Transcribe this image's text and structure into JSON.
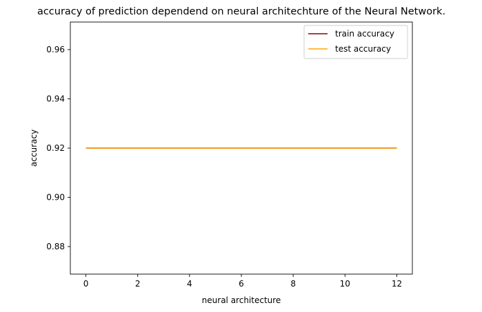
{
  "chart_data": {
    "type": "line",
    "title": "accuracy of prediction dependend on neural architechture of the Neural Network.",
    "xlabel": "neural architecture",
    "ylabel": "accuracy",
    "xlim": [
      -0.6,
      12.6
    ],
    "ylim": [
      0.8688,
      0.9712
    ],
    "xticks": [
      0,
      2,
      4,
      6,
      8,
      10,
      12
    ],
    "xtick_labels": [
      "0",
      "2",
      "4",
      "6",
      "8",
      "10",
      "12"
    ],
    "yticks": [
      0.88,
      0.9,
      0.92,
      0.94,
      0.96
    ],
    "ytick_labels": [
      "0.88",
      "0.90",
      "0.92",
      "0.94",
      "0.96"
    ],
    "grid": false,
    "legend_position": "top-right",
    "series": [
      {
        "name": "train accuracy",
        "color": "#8b0000",
        "x": [
          0,
          1,
          2,
          3,
          4,
          5,
          6,
          7,
          8,
          9,
          10,
          11,
          12
        ],
        "y": [
          0.92,
          0.92,
          0.92,
          0.92,
          0.92,
          0.92,
          0.92,
          0.92,
          0.92,
          0.92,
          0.92,
          0.92,
          0.92
        ]
      },
      {
        "name": "test accuracy",
        "color": "#ffa500",
        "x": [
          0,
          1,
          2,
          3,
          4,
          5,
          6,
          7,
          8,
          9,
          10,
          11,
          12
        ],
        "y": [
          0.92,
          0.92,
          0.92,
          0.92,
          0.92,
          0.92,
          0.92,
          0.92,
          0.92,
          0.92,
          0.92,
          0.92,
          0.92
        ]
      }
    ]
  }
}
